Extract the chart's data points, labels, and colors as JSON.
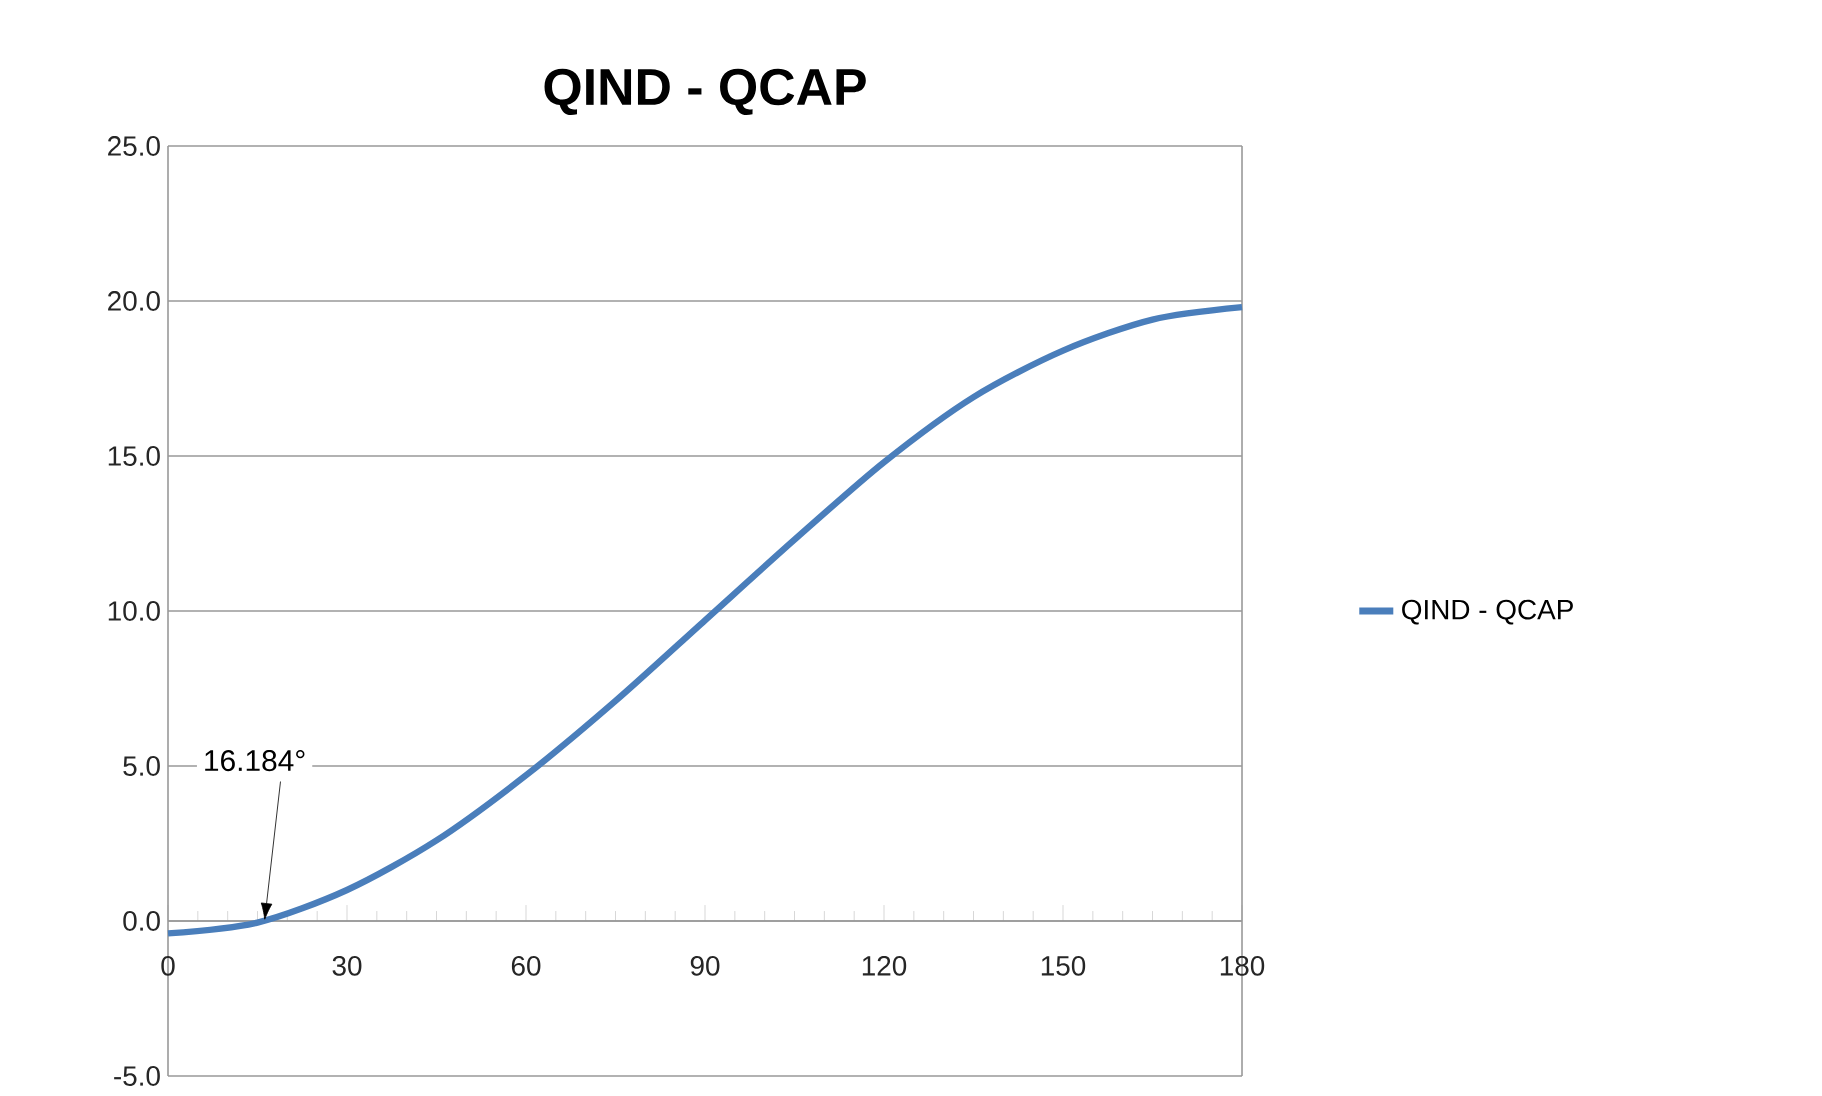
{
  "chart_data": {
    "type": "line",
    "title": "QIND - QCAP",
    "x": [
      0,
      15,
      30,
      45,
      60,
      75,
      90,
      105,
      120,
      135,
      150,
      165,
      180
    ],
    "series": [
      {
        "name": "QIND - QCAP",
        "color": "#4a7ebb",
        "values": [
          -0.4,
          -0.05,
          1.0,
          2.6,
          4.7,
          7.1,
          9.7,
          12.3,
          14.8,
          16.9,
          18.4,
          19.4,
          19.8
        ]
      }
    ],
    "xlim": [
      0,
      180
    ],
    "xticks": [
      0,
      30,
      60,
      90,
      120,
      150,
      180
    ],
    "ylim": [
      -5,
      25
    ],
    "yticks": [
      {
        "value": -5,
        "label": "-5.0"
      },
      {
        "value": 0,
        "label": "0.0"
      },
      {
        "value": 5,
        "label": "5.0"
      },
      {
        "value": 10,
        "label": "10.0"
      },
      {
        "value": 15,
        "label": "15.0"
      },
      {
        "value": 20,
        "label": "20.0"
      },
      {
        "value": 25,
        "label": "25.0"
      }
    ],
    "grid": "y",
    "legend": "right",
    "marker": "none",
    "line_style": "solid",
    "annotations": [
      {
        "text": "16.184°",
        "x": 16.184,
        "y": 0
      }
    ]
  }
}
